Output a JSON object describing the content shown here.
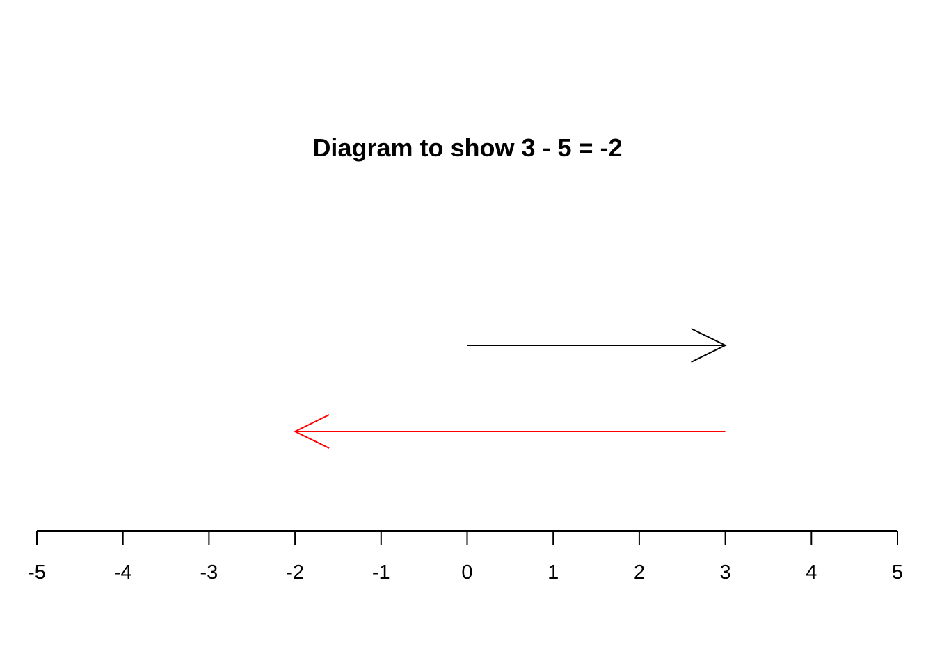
{
  "title": "Diagram to show 3 - 5 = -2",
  "number_line": {
    "min": -5,
    "max": 5,
    "ticks": [
      -5,
      -4,
      -3,
      -2,
      -1,
      0,
      1,
      2,
      3,
      4,
      5
    ],
    "tick_labels": [
      "-5",
      "-4",
      "-3",
      "-2",
      "-1",
      "0",
      "1",
      "2",
      "3",
      "4",
      "5"
    ]
  },
  "arrows": [
    {
      "name": "start-arrow",
      "from": 0,
      "to": 3,
      "color": "#000000"
    },
    {
      "name": "subtract-arrow",
      "from": 3,
      "to": -2,
      "color": "#ff0000"
    }
  ]
}
